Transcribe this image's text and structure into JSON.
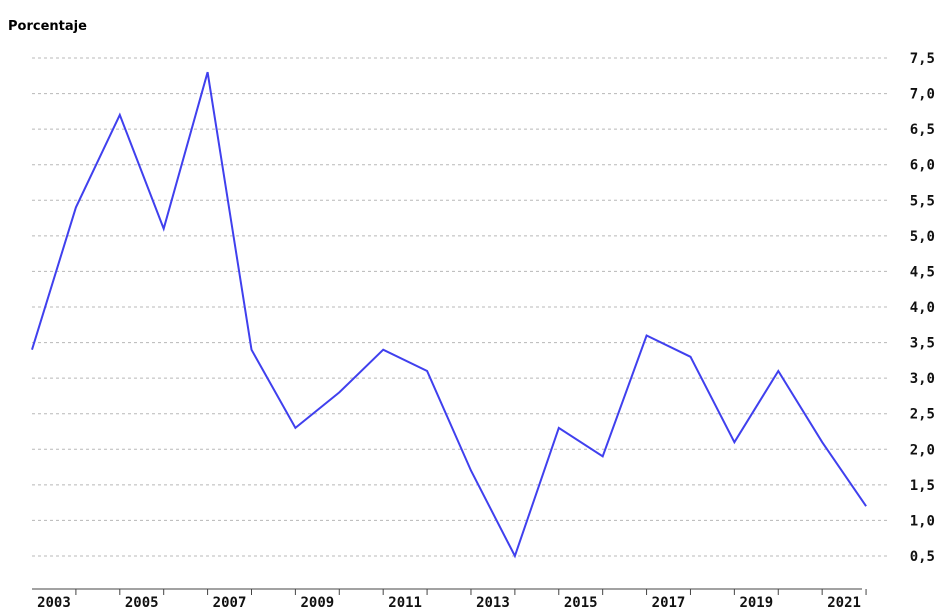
{
  "chart_data": {
    "type": "line",
    "title": "",
    "ylabel": "Porcentaje",
    "xlabel": "",
    "x": [
      2002.5,
      2003.5,
      2004.5,
      2005.5,
      2006.5,
      2007.5,
      2008.5,
      2009.5,
      2010.5,
      2011.5,
      2012.5,
      2013.5,
      2014.5,
      2015.5,
      2016.5,
      2017.5,
      2018.5,
      2019.5,
      2020.5,
      2021.5
    ],
    "series": [
      {
        "name": "",
        "color": "#4040ee",
        "values": [
          3.4,
          5.4,
          6.7,
          5.1,
          7.3,
          3.4,
          2.3,
          2.8,
          3.4,
          3.1,
          1.7,
          0.5,
          2.3,
          1.9,
          3.6,
          3.3,
          2.1,
          3.1,
          2.1,
          1.2
        ]
      }
    ],
    "x_ticks": [
      "2003",
      "2005",
      "2007",
      "2009",
      "2011",
      "2013",
      "2015",
      "2017",
      "2019",
      "2021"
    ],
    "y_ticks": [
      "0,5",
      "1,0",
      "1,5",
      "2,0",
      "2,5",
      "3,0",
      "3,5",
      "4,0",
      "4,5",
      "5,0",
      "5,5",
      "6,0",
      "6,5",
      "7,0",
      "7,5"
    ],
    "ylim": [
      0.5,
      7.5
    ],
    "xlim": [
      2002.5,
      2022
    ],
    "grid": true,
    "y_axis_side": "right",
    "legend": "none"
  }
}
